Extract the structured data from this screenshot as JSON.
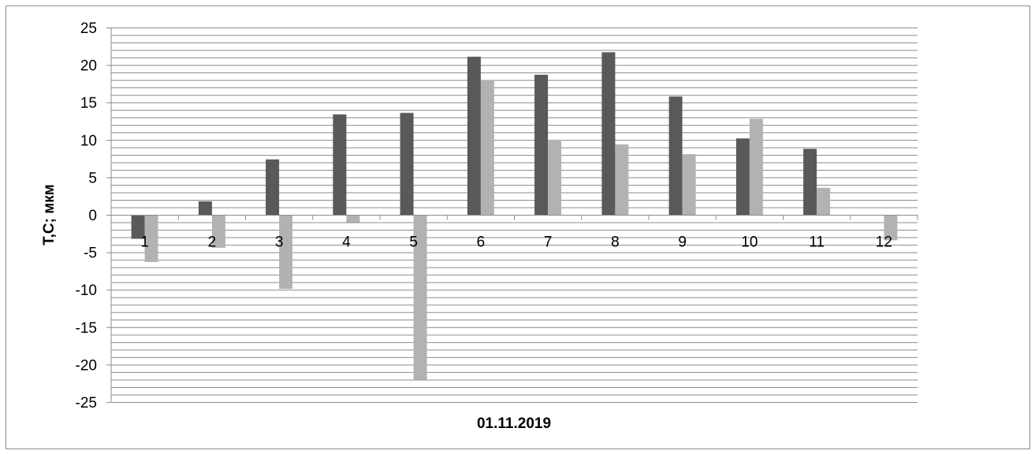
{
  "chart_data": {
    "type": "bar",
    "categories": [
      "1",
      "2",
      "3",
      "4",
      "5",
      "6",
      "7",
      "8",
      "9",
      "10",
      "11",
      "12"
    ],
    "series": [
      {
        "values": [
          -3.2,
          1.8,
          7.4,
          13.4,
          13.6,
          21.1,
          18.7,
          21.7,
          15.8,
          10.2,
          8.8,
          0
        ],
        "color": "#595959"
      },
      {
        "values": [
          -6.3,
          -4.4,
          -9.9,
          -1.0,
          -22.0,
          18.0,
          10.0,
          9.4,
          8.1,
          12.8,
          3.6,
          -3.4
        ],
        "color": "#b2b2b2"
      }
    ],
    "title": "",
    "xlabel": "01.11.2019",
    "ylabel": "T,C; мкм",
    "ylim": [
      -25,
      25
    ],
    "yticks": [
      "25",
      "20",
      "15",
      "10",
      "5",
      "0",
      "-5",
      "-10",
      "-15",
      "-20",
      "-25"
    ],
    "grid": true,
    "legend": "none"
  }
}
